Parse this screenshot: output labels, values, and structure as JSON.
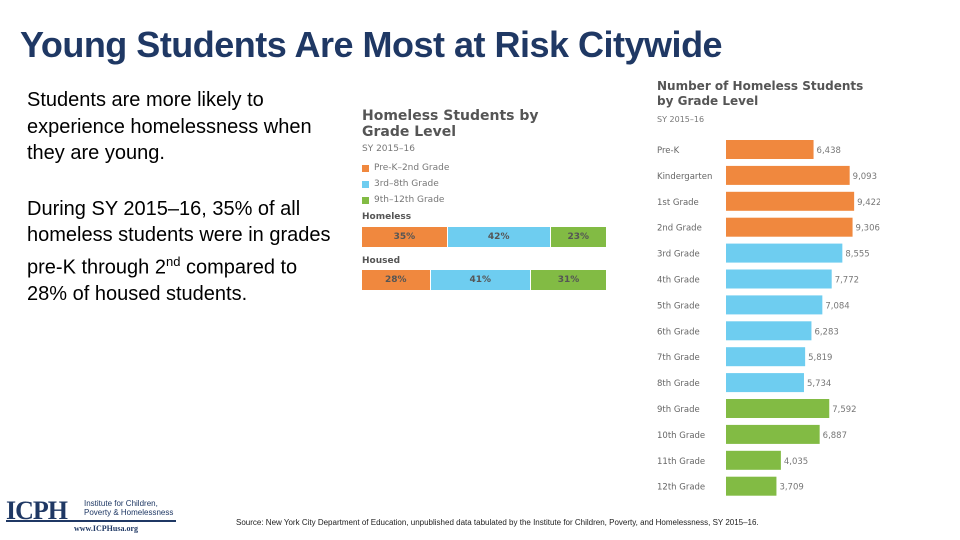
{
  "slide": {
    "title": "Young Students Are Most at Risk Citywide",
    "bullet1_part1": "Students are more likely to experience homelessness ",
    "bullet1_part2": "when they are young.",
    "bullet2_part1": "During SY 2015–16, 35% of all homeless students were in grades pre-K through 2",
    "bullet2_sup": "nd",
    "bullet2_part2": " compared to 28% of housed students.",
    "source": "Source: New York City Department of Education, unpublished data tabulated by the Institute for Children, Poverty, and Homelessness, SY 2015–16."
  },
  "logo": {
    "mark": "ICPH",
    "line1": "Institute for Children,",
    "line2": "Poverty & Homelessness",
    "url": "www.ICPHusa.org"
  },
  "colors": {
    "title": "#1f3864",
    "orange": "#f0883e",
    "blue": "#6ecdf0",
    "green": "#82bb44"
  },
  "chart_data": [
    {
      "type": "bar",
      "orientation": "horizontal-stacked",
      "title_line1": "Homeless Students by",
      "title_line2": "Grade Level",
      "subtitle": "SY 2015–16",
      "categories": [
        "Homeless",
        "Housed"
      ],
      "series": [
        {
          "name": "Pre-K–2nd Grade",
          "color": "#f0883e",
          "values": [
            35,
            28
          ],
          "labels": [
            "35%",
            "28%"
          ]
        },
        {
          "name": "3rd–8th Grade",
          "color": "#6ecdf0",
          "values": [
            42,
            41
          ],
          "labels": [
            "42%",
            "41%"
          ]
        },
        {
          "name": "9th–12th Grade",
          "color": "#82bb44",
          "values": [
            23,
            31
          ],
          "labels": [
            "23%",
            "31%"
          ]
        }
      ]
    },
    {
      "type": "bar",
      "orientation": "horizontal",
      "title_line1": "Number of Homeless Students",
      "title_line2": "by Grade Level",
      "subtitle": "SY 2015–16",
      "xlim": [
        0,
        10000
      ],
      "categories": [
        "Pre-K",
        "Kindergarten",
        "1st Grade",
        "2nd Grade",
        "3rd Grade",
        "4th Grade",
        "5th Grade",
        "6th Grade",
        "7th Grade",
        "8th Grade",
        "9th Grade",
        "10th Grade",
        "11th Grade",
        "12th Grade"
      ],
      "values": [
        6438,
        9093,
        9422,
        9306,
        8555,
        7772,
        7084,
        6283,
        5819,
        5734,
        7592,
        6887,
        4035,
        3709
      ],
      "value_labels": [
        "6,438",
        "9,093",
        "9,422",
        "9,306",
        "8,555",
        "7,772",
        "7,084",
        "6,283",
        "5,819",
        "5,734",
        "7,592",
        "6,887",
        "4,035",
        "3,709"
      ],
      "colors": [
        "#f0883e",
        "#f0883e",
        "#f0883e",
        "#f0883e",
        "#6ecdf0",
        "#6ecdf0",
        "#6ecdf0",
        "#6ecdf0",
        "#6ecdf0",
        "#6ecdf0",
        "#82bb44",
        "#82bb44",
        "#82bb44",
        "#82bb44"
      ]
    }
  ]
}
